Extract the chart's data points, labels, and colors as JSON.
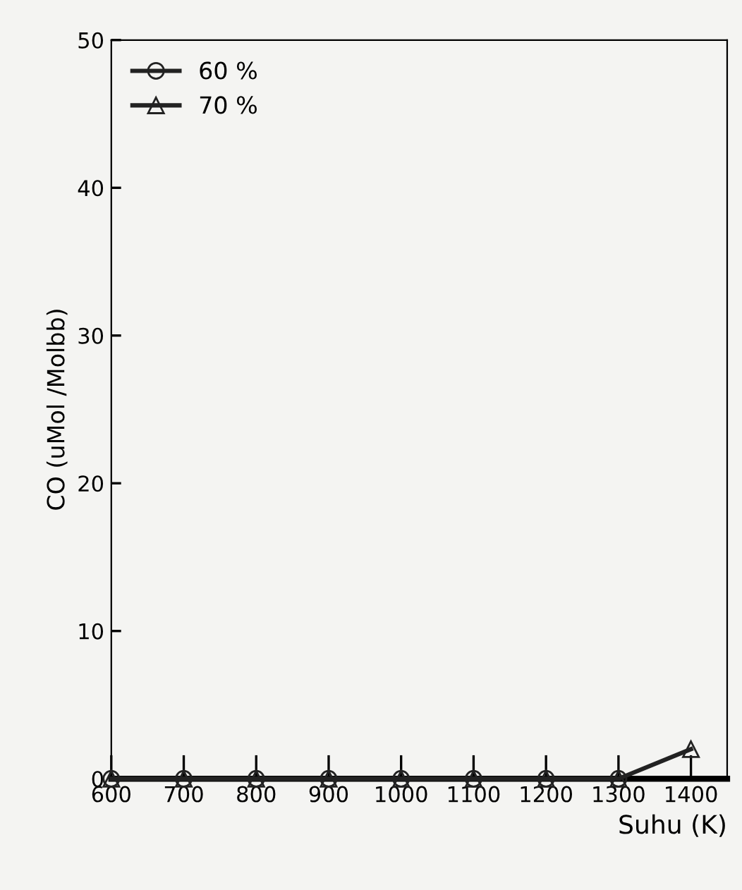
{
  "chart_data": {
    "type": "line",
    "xlabel": "Suhu (K)",
    "ylabel": "CO (uMol /Molbb)",
    "x": [
      600,
      700,
      800,
      900,
      1000,
      1100,
      1200,
      1300,
      1400
    ],
    "series": [
      {
        "name": "60 %",
        "color": "#222222",
        "marker": "circle",
        "values": [
          0,
          0,
          0,
          0,
          0,
          0,
          0,
          0,
          null
        ]
      },
      {
        "name": "70 %",
        "color": "#222222",
        "marker": "triangle",
        "values": [
          0,
          0,
          0,
          0,
          0,
          0,
          0,
          0,
          2
        ]
      }
    ],
    "xlim": [
      600,
      1450
    ],
    "ylim": [
      0,
      50
    ],
    "xticks": [
      600,
      700,
      800,
      900,
      1000,
      1100,
      1200,
      1300,
      1400
    ],
    "yticks": [
      0,
      10,
      20,
      30,
      40,
      50
    ],
    "grid": false,
    "legend": "top left"
  }
}
